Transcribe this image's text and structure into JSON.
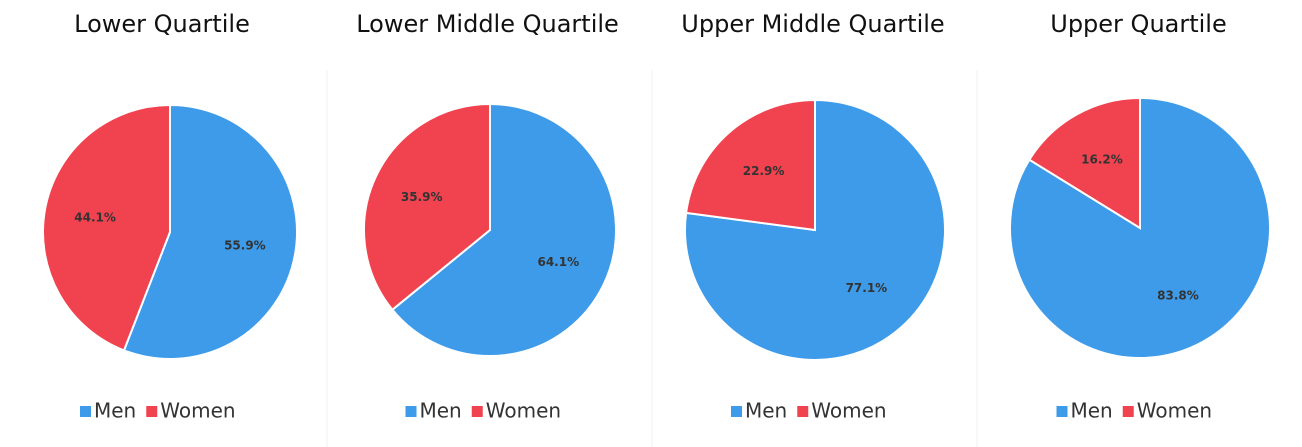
{
  "chart_data": [
    {
      "type": "pie",
      "title": "Lower Quartile",
      "categories": [
        "Men",
        "Women"
      ],
      "values": [
        55.9,
        44.1
      ],
      "value_labels": [
        "55.9%",
        "44.1%"
      ],
      "colors": [
        "#3d9be9",
        "#f0434f"
      ]
    },
    {
      "type": "pie",
      "title": "Lower Middle Quartile",
      "categories": [
        "Men",
        "Women"
      ],
      "values": [
        64.1,
        35.9
      ],
      "value_labels": [
        "64.1%",
        "35.9%"
      ],
      "colors": [
        "#3d9be9",
        "#f0434f"
      ]
    },
    {
      "type": "pie",
      "title": "Upper Middle Quartile",
      "categories": [
        "Men",
        "Women"
      ],
      "values": [
        77.1,
        22.9
      ],
      "value_labels": [
        "77.1%",
        "22.9%"
      ],
      "colors": [
        "#3d9be9",
        "#f0434f"
      ]
    },
    {
      "type": "pie",
      "title": "Upper Quartile",
      "categories": [
        "Men",
        "Women"
      ],
      "values": [
        83.8,
        16.2
      ],
      "value_labels": [
        "83.8%",
        "16.2%"
      ],
      "colors": [
        "#3d9be9",
        "#f0434f"
      ]
    }
  ]
}
